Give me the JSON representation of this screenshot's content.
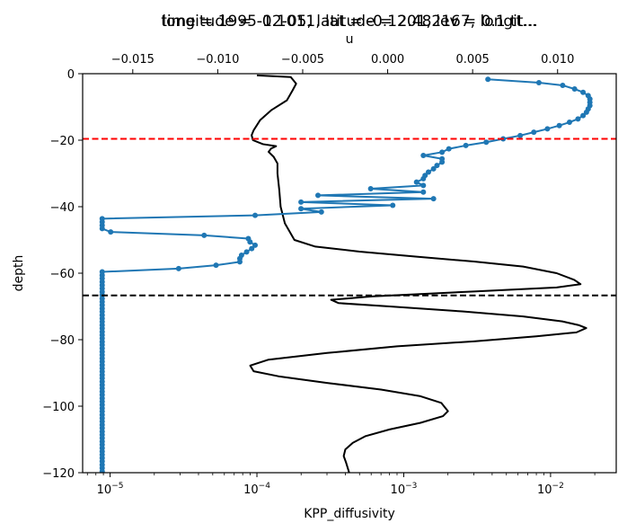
{
  "chart_data": {
    "type": "line",
    "titles": [
      "time = 1995-12-05, latitude = 2.482167, longit...",
      "longitude = -0.1011, lat = -0.1201, lev = 0.1 tt..."
    ],
    "ylabel": "depth",
    "ylim": [
      -120,
      0
    ],
    "y_ticks": [
      0,
      -20,
      -40,
      -60,
      -80,
      -100,
      -120
    ],
    "y_tick_labels": [
      "0",
      "−20",
      "−40",
      "−60",
      "−80",
      "−100",
      "−120"
    ],
    "bottom_axis": {
      "label": "KPP_diffusivity",
      "scale": "log",
      "xlim": [
        6.5e-06,
        0.028
      ],
      "ticks": [
        1e-05,
        0.0001,
        0.001,
        0.01
      ],
      "tick_labels": [
        [
          "10",
          "−5"
        ],
        [
          "10",
          "−4"
        ],
        [
          "10",
          "−3"
        ],
        [
          "10",
          "−2"
        ]
      ]
    },
    "top_axis": {
      "label": "u",
      "scale": "linear",
      "xlim": [
        -0.01795,
        0.01345
      ],
      "ticks": [
        -0.015,
        -0.01,
        -0.005,
        0.0,
        0.005,
        0.01
      ],
      "tick_labels": [
        "−0.015",
        "−0.010",
        "−0.005",
        "0.000",
        "0.005",
        "0.010"
      ]
    },
    "hlines": [
      {
        "name": "red-dashed-line",
        "y": -19.6,
        "color": "#ff0000",
        "style": "dashed"
      },
      {
        "name": "black-dashed-line",
        "y": -66.7,
        "color": "#000000",
        "style": "dashed"
      }
    ],
    "series": [
      {
        "axis": "bottom",
        "color": "#000000",
        "marker": false,
        "points": [
          [
            0.0001,
            -0.5
          ],
          [
            0.00017,
            -1.0
          ],
          [
            0.000185,
            -3
          ],
          [
            0.000175,
            -5
          ],
          [
            0.00016,
            -8
          ],
          [
            0.000125,
            -11
          ],
          [
            0.000105,
            -14
          ],
          [
            9.5e-05,
            -17
          ],
          [
            9.2e-05,
            -18.5
          ],
          [
            9.4e-05,
            -20
          ],
          [
            0.00011,
            -21.2
          ],
          [
            0.000135,
            -21.8
          ],
          [
            0.000125,
            -22.5
          ],
          [
            0.00012,
            -23.5
          ],
          [
            0.00013,
            -25
          ],
          [
            0.000138,
            -27
          ],
          [
            0.000138,
            -30
          ],
          [
            0.000142,
            -35
          ],
          [
            0.000145,
            -40
          ],
          [
            0.000155,
            -45
          ],
          [
            0.00018,
            -50
          ],
          [
            0.00025,
            -52
          ],
          [
            0.0005,
            -53.5
          ],
          [
            0.0012,
            -55
          ],
          [
            0.003,
            -56.5
          ],
          [
            0.0065,
            -58
          ],
          [
            0.011,
            -60
          ],
          [
            0.0145,
            -62
          ],
          [
            0.016,
            -63.3
          ],
          [
            0.011,
            -64.3
          ],
          [
            0.003,
            -65.5
          ],
          [
            0.0006,
            -67
          ],
          [
            0.00032,
            -68
          ],
          [
            0.00036,
            -69
          ],
          [
            0.0008,
            -70
          ],
          [
            0.0025,
            -71.5
          ],
          [
            0.0065,
            -73
          ],
          [
            0.012,
            -74.5
          ],
          [
            0.0155,
            -75.6
          ],
          [
            0.0175,
            -76.5
          ],
          [
            0.015,
            -77.8
          ],
          [
            0.008,
            -79
          ],
          [
            0.003,
            -80.5
          ],
          [
            0.0009,
            -82
          ],
          [
            0.0003,
            -84
          ],
          [
            0.00012,
            -86
          ],
          [
            9e-05,
            -87.8
          ],
          [
            9.5e-05,
            -89.5
          ],
          [
            0.00014,
            -91
          ],
          [
            0.0003,
            -93
          ],
          [
            0.0007,
            -95
          ],
          [
            0.0013,
            -97
          ],
          [
            0.0018,
            -99
          ],
          [
            0.002,
            -101.5
          ],
          [
            0.00185,
            -103
          ],
          [
            0.0013,
            -105
          ],
          [
            0.0008,
            -107
          ],
          [
            0.00055,
            -109
          ],
          [
            0.00045,
            -111
          ],
          [
            0.0004,
            -113
          ],
          [
            0.00039,
            -115
          ],
          [
            0.000405,
            -117
          ],
          [
            0.000425,
            -120
          ]
        ]
      },
      {
        "axis": "top",
        "color": "#1f77b4",
        "marker": true,
        "points": [
          [
            0.0059,
            -1.7
          ],
          [
            0.0089,
            -2.7
          ],
          [
            0.0103,
            -3.5
          ],
          [
            0.011,
            -4.6
          ],
          [
            0.0115,
            -5.6
          ],
          [
            0.0118,
            -6.6
          ],
          [
            0.0119,
            -7.6
          ],
          [
            0.0119,
            -8.6
          ],
          [
            0.0119,
            -9.6
          ],
          [
            0.0118,
            -10.6
          ],
          [
            0.0117,
            -11.6
          ],
          [
            0.0115,
            -12.6
          ],
          [
            0.0112,
            -13.6
          ],
          [
            0.0107,
            -14.6
          ],
          [
            0.0101,
            -15.6
          ],
          [
            0.0094,
            -16.6
          ],
          [
            0.0086,
            -17.6
          ],
          [
            0.0078,
            -18.6
          ],
          [
            0.0068,
            -19.6
          ],
          [
            0.0058,
            -20.6
          ],
          [
            0.0046,
            -21.6
          ],
          [
            0.0036,
            -22.6
          ],
          [
            0.0032,
            -23.6
          ],
          [
            0.0021,
            -24.6
          ],
          [
            0.0032,
            -25.6
          ],
          [
            0.0032,
            -26.6
          ],
          [
            0.0029,
            -27.6
          ],
          [
            0.0027,
            -28.6
          ],
          [
            0.0024,
            -29.6
          ],
          [
            0.0022,
            -30.6
          ],
          [
            0.0021,
            -31.6
          ],
          [
            0.0017,
            -32.6
          ],
          [
            0.0021,
            -33.6
          ],
          [
            -0.001,
            -34.6
          ],
          [
            0.0021,
            -35.6
          ],
          [
            -0.0041,
            -36.6
          ],
          [
            0.0027,
            -37.6
          ],
          [
            -0.0051,
            -38.6
          ],
          [
            0.0003,
            -39.6
          ],
          [
            -0.0051,
            -40.6
          ],
          [
            -0.0039,
            -41.6
          ],
          [
            -0.0078,
            -42.6
          ],
          [
            -0.0168,
            -43.6
          ],
          [
            -0.0168,
            -44.6
          ],
          [
            -0.0168,
            -45.6
          ],
          [
            -0.0168,
            -46.6
          ],
          [
            -0.0163,
            -47.6
          ],
          [
            -0.0108,
            -48.6
          ],
          [
            -0.0082,
            -49.6
          ],
          [
            -0.0081,
            -50.6
          ],
          [
            -0.0078,
            -51.6
          ],
          [
            -0.008,
            -52.6
          ],
          [
            -0.0083,
            -53.6
          ],
          [
            -0.0086,
            -54.6
          ],
          [
            -0.0087,
            -55.6
          ],
          [
            -0.0087,
            -56.6
          ],
          [
            -0.0101,
            -57.6
          ],
          [
            -0.0123,
            -58.6
          ],
          [
            -0.0168,
            -59.6
          ],
          [
            -0.0168,
            -60.6
          ],
          [
            -0.0168,
            -61.6
          ],
          [
            -0.0168,
            -62.6
          ],
          [
            -0.0168,
            -63.6
          ],
          [
            -0.0168,
            -64.6
          ],
          [
            -0.0168,
            -65.6
          ],
          [
            -0.0168,
            -66.6
          ],
          [
            -0.0168,
            -67.6
          ],
          [
            -0.0168,
            -68.6
          ],
          [
            -0.0168,
            -69.6
          ],
          [
            -0.0168,
            -70.6
          ],
          [
            -0.0168,
            -71.6
          ],
          [
            -0.0168,
            -72.6
          ],
          [
            -0.0168,
            -73.6
          ],
          [
            -0.0168,
            -74.6
          ],
          [
            -0.0168,
            -75.6
          ],
          [
            -0.0168,
            -76.6
          ],
          [
            -0.0168,
            -77.6
          ],
          [
            -0.0168,
            -78.6
          ],
          [
            -0.0168,
            -79.6
          ],
          [
            -0.0168,
            -80.6
          ],
          [
            -0.0168,
            -81.6
          ],
          [
            -0.0168,
            -82.6
          ],
          [
            -0.0168,
            -83.6
          ],
          [
            -0.0168,
            -84.6
          ],
          [
            -0.0168,
            -85.6
          ],
          [
            -0.0168,
            -86.6
          ],
          [
            -0.0168,
            -87.6
          ],
          [
            -0.0168,
            -88.6
          ],
          [
            -0.0168,
            -89.6
          ],
          [
            -0.0168,
            -90.6
          ],
          [
            -0.0168,
            -91.6
          ],
          [
            -0.0168,
            -92.6
          ],
          [
            -0.0168,
            -93.6
          ],
          [
            -0.0168,
            -94.6
          ],
          [
            -0.0168,
            -95.6
          ],
          [
            -0.0168,
            -96.6
          ],
          [
            -0.0168,
            -97.6
          ],
          [
            -0.0168,
            -98.6
          ],
          [
            -0.0168,
            -99.6
          ],
          [
            -0.0168,
            -100.6
          ],
          [
            -0.0168,
            -101.6
          ],
          [
            -0.0168,
            -102.6
          ],
          [
            -0.0168,
            -103.6
          ],
          [
            -0.0168,
            -104.6
          ],
          [
            -0.0168,
            -105.6
          ],
          [
            -0.0168,
            -106.6
          ],
          [
            -0.0168,
            -107.6
          ],
          [
            -0.0168,
            -108.6
          ],
          [
            -0.0168,
            -109.6
          ],
          [
            -0.0168,
            -110.6
          ],
          [
            -0.0168,
            -111.6
          ],
          [
            -0.0168,
            -112.6
          ],
          [
            -0.0168,
            -113.6
          ],
          [
            -0.0168,
            -114.6
          ],
          [
            -0.0168,
            -115.6
          ],
          [
            -0.0168,
            -116.6
          ],
          [
            -0.0168,
            -117.6
          ],
          [
            -0.0168,
            -118.6
          ],
          [
            -0.0168,
            -119.6
          ]
        ]
      }
    ]
  }
}
